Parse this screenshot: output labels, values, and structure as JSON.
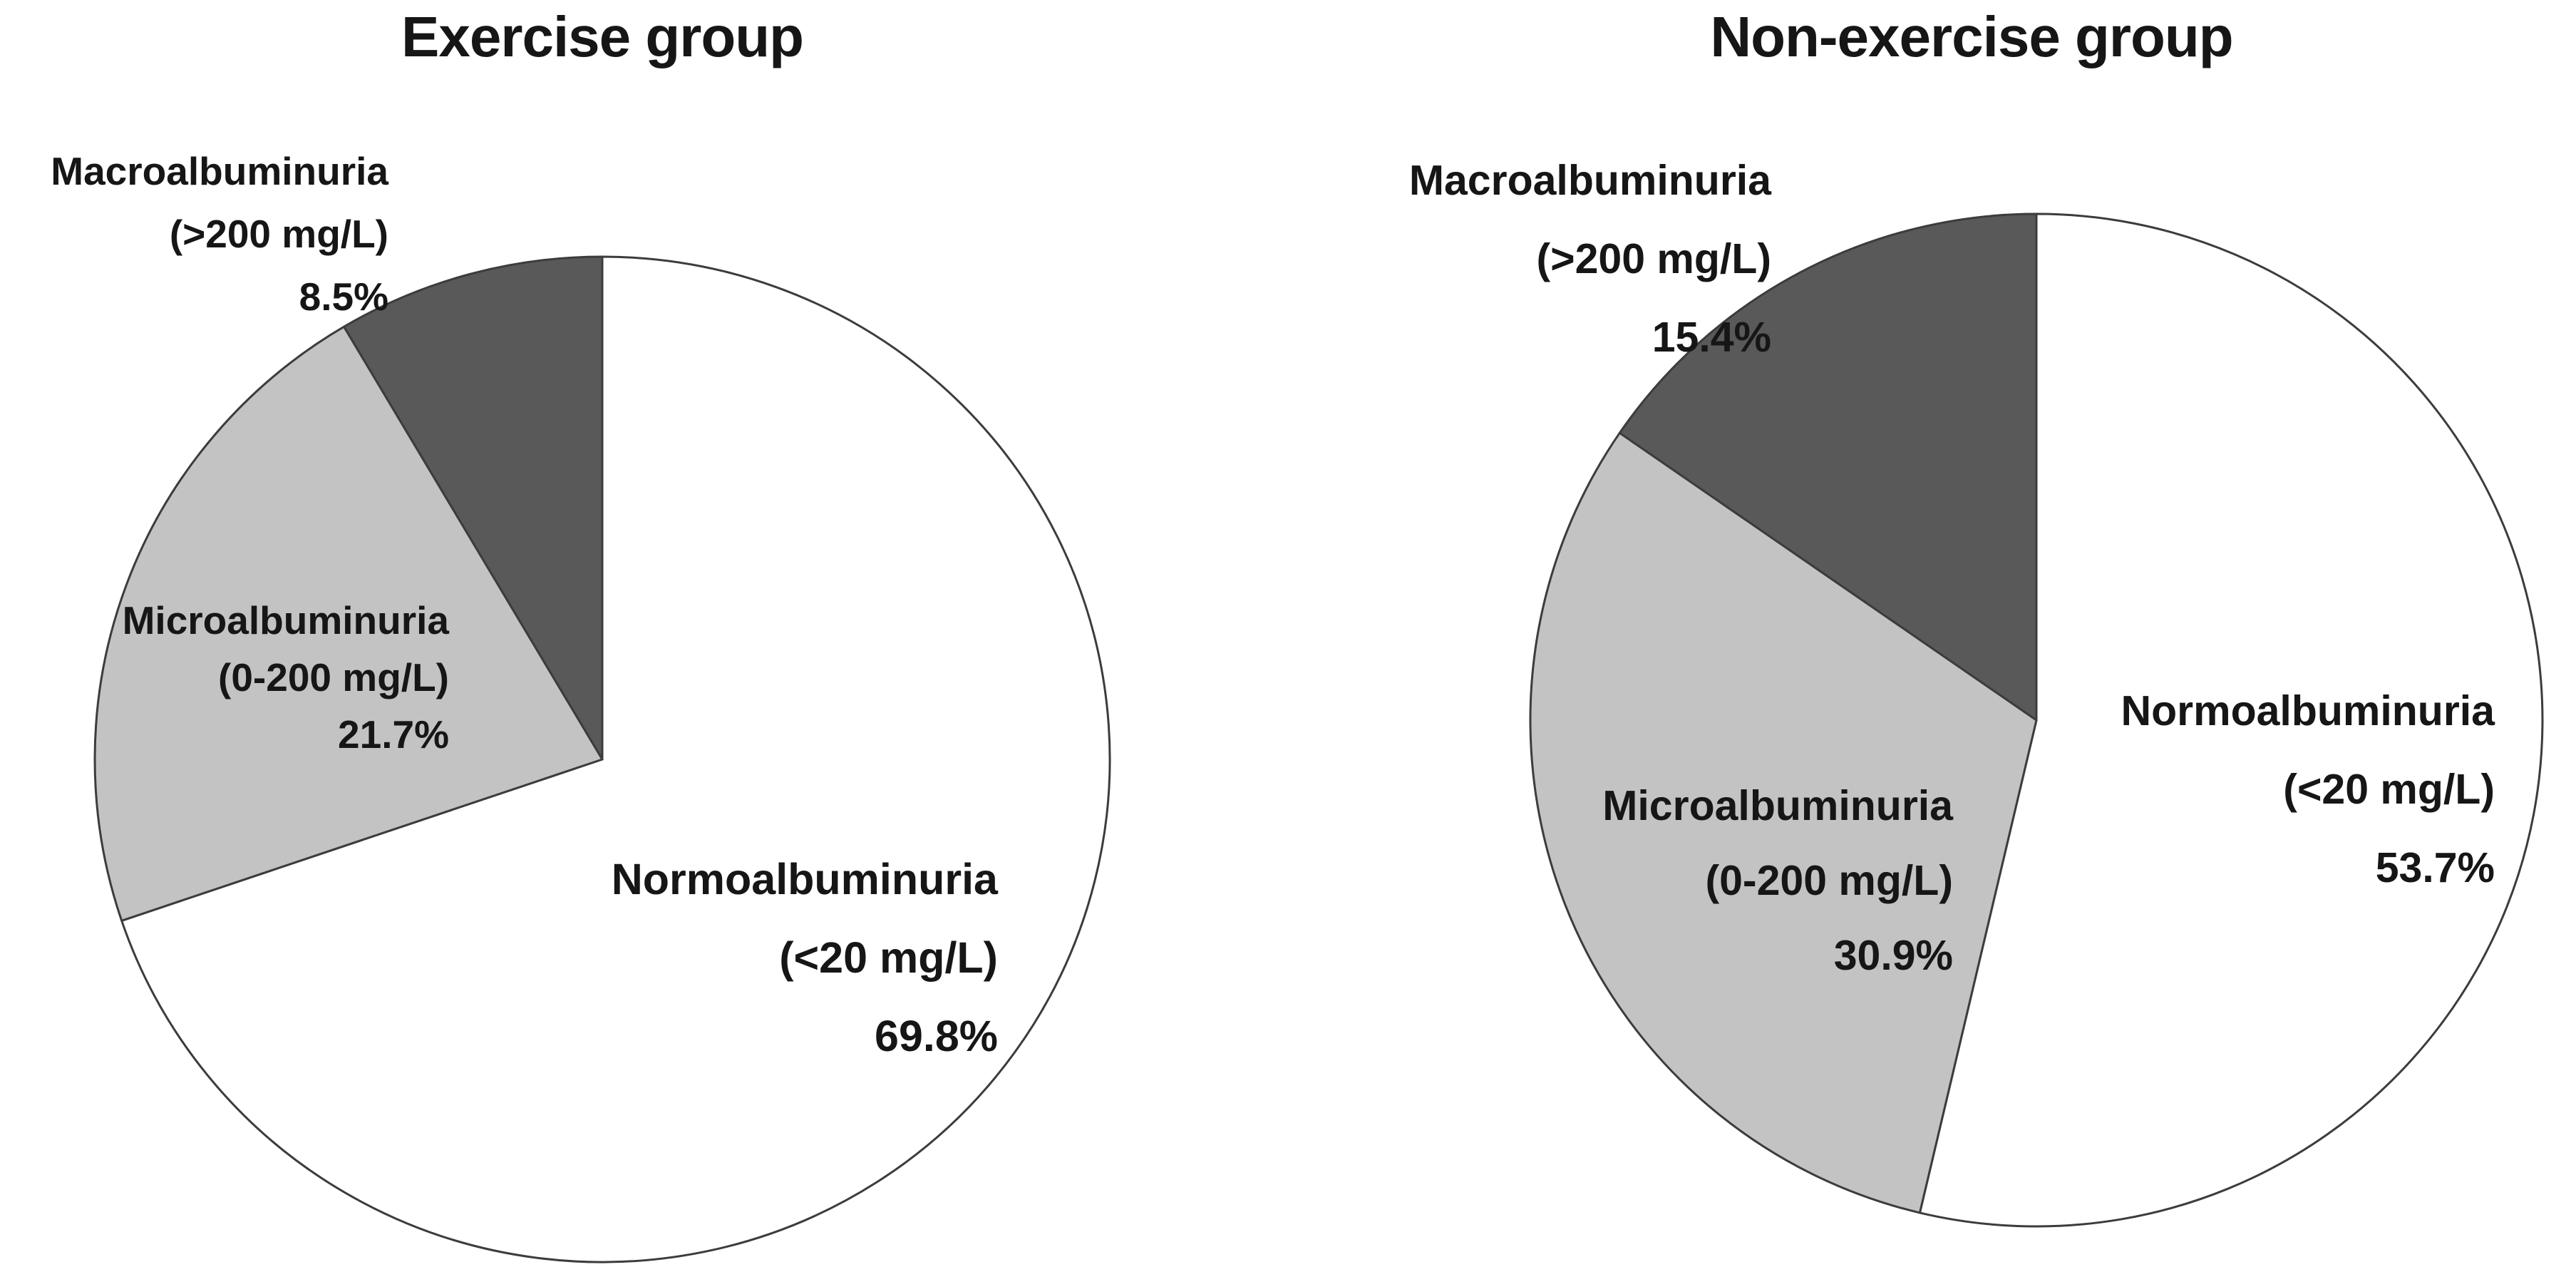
{
  "figure": {
    "background_color": "#ffffff",
    "text_color": "#161616"
  },
  "chart_data": [
    {
      "type": "pie",
      "title": "Exercise group",
      "start_angle_deg": 0,
      "direction": "clockwise",
      "legend_position": "none",
      "outline_color": "#3c3c3c",
      "slices": [
        {
          "name": "Normoalbuminuria",
          "range": "(<20 mg/L)",
          "pct": "69.8%",
          "value": 69.8,
          "color": "#ffffff"
        },
        {
          "name": "Microalbuminuria",
          "range": "(0-200 mg/L)",
          "pct": "21.7%",
          "value": 21.7,
          "color": "#c3c3c3"
        },
        {
          "name": "Macroalbuminuria",
          "range": "(>200 mg/L)",
          "pct": "8.5%",
          "value": 8.5,
          "color": "#595959"
        }
      ]
    },
    {
      "type": "pie",
      "title": "Non-exercise group",
      "start_angle_deg": 0,
      "direction": "clockwise",
      "legend_position": "none",
      "outline_color": "#3c3c3c",
      "slices": [
        {
          "name": "Normoalbuminuria",
          "range": "(<20 mg/L)",
          "pct": "53.7%",
          "value": 53.7,
          "color": "#ffffff"
        },
        {
          "name": "Microalbuminuria",
          "range": "(0-200 mg/L)",
          "pct": "30.9%",
          "value": 30.9,
          "color": "#c3c3c3"
        },
        {
          "name": "Macroalbuminuria",
          "range": "(>200 mg/L)",
          "pct": "15.4%",
          "value": 15.4,
          "color": "#595959"
        }
      ]
    }
  ]
}
